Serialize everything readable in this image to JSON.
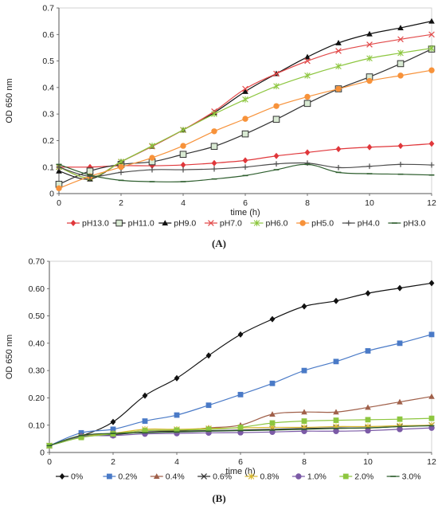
{
  "chart_data": [
    {
      "type": "line",
      "panel_label": "(A)",
      "xlabel": "time (h)",
      "ylabel": "OD 650 nm",
      "xlim": [
        0,
        12
      ],
      "ylim": [
        0,
        0.7
      ],
      "xticks": [
        "0",
        "2",
        "4",
        "6",
        "8",
        "10",
        "12"
      ],
      "yticks": [
        "0",
        "0.1",
        "0.2",
        "0.3",
        "0.4",
        "0.5",
        "0.6",
        "0.7"
      ],
      "grid": false,
      "legend_position": "bottom",
      "x": [
        0,
        1,
        2,
        3,
        4,
        5,
        6,
        7,
        8,
        9,
        10,
        11,
        12
      ],
      "series": [
        {
          "name": "pH13.0",
          "color": "#e0373b",
          "marker": "diamond",
          "values": [
            0.1,
            0.1,
            0.105,
            0.105,
            0.108,
            0.115,
            0.125,
            0.142,
            0.155,
            0.168,
            0.175,
            0.18,
            0.188
          ]
        },
        {
          "name": "pH11.0",
          "color": "#333333",
          "marker": "square-open",
          "values": [
            0.035,
            0.085,
            0.11,
            0.12,
            0.148,
            0.178,
            0.225,
            0.28,
            0.34,
            0.395,
            0.44,
            0.49,
            0.545
          ]
        },
        {
          "name": "pH9.0",
          "color": "#111111",
          "marker": "triangle",
          "values": [
            0.085,
            0.055,
            0.12,
            0.178,
            0.24,
            0.305,
            0.385,
            0.452,
            0.515,
            0.568,
            0.602,
            0.625,
            0.65
          ]
        },
        {
          "name": "pH7.0",
          "color": "#e24a4a",
          "marker": "x",
          "values": [
            0.1,
            0.06,
            0.12,
            0.178,
            0.24,
            0.31,
            0.395,
            0.452,
            0.5,
            0.538,
            0.562,
            0.582,
            0.6
          ]
        },
        {
          "name": "pH6.0",
          "color": "#8dc63f",
          "marker": "star",
          "values": [
            0.1,
            0.06,
            0.12,
            0.18,
            0.24,
            0.3,
            0.355,
            0.405,
            0.445,
            0.48,
            0.51,
            0.53,
            0.548
          ]
        },
        {
          "name": "pH5.0",
          "color": "#f7923a",
          "marker": "circle",
          "values": [
            0.02,
            0.065,
            0.1,
            0.135,
            0.18,
            0.235,
            0.282,
            0.33,
            0.365,
            0.395,
            0.425,
            0.445,
            0.465
          ]
        },
        {
          "name": "pH4.0",
          "color": "#4d4d4d",
          "marker": "plus",
          "values": [
            0.1,
            0.065,
            0.08,
            0.09,
            0.09,
            0.093,
            0.1,
            0.112,
            0.115,
            0.098,
            0.103,
            0.11,
            0.108
          ]
        },
        {
          "name": "pH3.0",
          "color": "#2e5e2e",
          "marker": "dash",
          "values": [
            0.11,
            0.07,
            0.05,
            0.045,
            0.045,
            0.055,
            0.068,
            0.09,
            0.11,
            0.08,
            0.075,
            0.073,
            0.07
          ]
        }
      ]
    },
    {
      "type": "line",
      "panel_label": "(B)",
      "xlabel": "time (h)",
      "ylabel": "OD 650 nm",
      "xlim": [
        0,
        12
      ],
      "ylim": [
        0,
        0.7
      ],
      "xticks": [
        "0",
        "2",
        "4",
        "6",
        "8",
        "10",
        "12"
      ],
      "yticks": [
        "0",
        "0.10",
        "0.20",
        "0.30",
        "0.40",
        "0.50",
        "0.60",
        "0.70"
      ],
      "grid": false,
      "legend_position": "bottom",
      "x": [
        0,
        1,
        2,
        3,
        4,
        5,
        6,
        7,
        8,
        9,
        10,
        11,
        12
      ],
      "series": [
        {
          "name": "0%",
          "color": "#111111",
          "marker": "diamond",
          "values": [
            0.025,
            0.06,
            0.112,
            0.208,
            0.272,
            0.355,
            0.432,
            0.488,
            0.535,
            0.555,
            0.583,
            0.602,
            0.62
          ]
        },
        {
          "name": "0.2%",
          "color": "#4a7ac7",
          "marker": "square",
          "values": [
            0.025,
            0.072,
            0.085,
            0.115,
            0.137,
            0.173,
            0.212,
            0.253,
            0.3,
            0.333,
            0.372,
            0.4,
            0.432
          ]
        },
        {
          "name": "0.4%",
          "color": "#a0604a",
          "marker": "triangle",
          "values": [
            0.025,
            0.062,
            0.065,
            0.08,
            0.08,
            0.09,
            0.1,
            0.14,
            0.148,
            0.148,
            0.165,
            0.185,
            0.205
          ]
        },
        {
          "name": "0.6%",
          "color": "#333333",
          "marker": "x",
          "values": [
            0.025,
            0.06,
            0.065,
            0.075,
            0.078,
            0.08,
            0.082,
            0.085,
            0.088,
            0.09,
            0.09,
            0.095,
            0.1
          ]
        },
        {
          "name": "0.8%",
          "color": "#d8b830",
          "marker": "star",
          "values": [
            0.025,
            0.058,
            0.07,
            0.085,
            0.085,
            0.088,
            0.09,
            0.092,
            0.092,
            0.095,
            0.095,
            0.098,
            0.1
          ]
        },
        {
          "name": "1.0%",
          "color": "#7b5aa6",
          "marker": "circle",
          "values": [
            0.025,
            0.058,
            0.062,
            0.068,
            0.07,
            0.072,
            0.073,
            0.075,
            0.078,
            0.078,
            0.08,
            0.085,
            0.09
          ]
        },
        {
          "name": "2.0%",
          "color": "#8dc63f",
          "marker": "square",
          "values": [
            0.025,
            0.055,
            0.068,
            0.08,
            0.082,
            0.085,
            0.092,
            0.108,
            0.115,
            0.118,
            0.12,
            0.122,
            0.125
          ]
        },
        {
          "name": "3.0%",
          "color": "#2e5e2e",
          "marker": "dash",
          "values": [
            0.025,
            0.062,
            0.07,
            0.072,
            0.075,
            0.078,
            0.08,
            0.082,
            0.085,
            0.088,
            0.09,
            0.095,
            0.098
          ]
        }
      ]
    }
  ]
}
